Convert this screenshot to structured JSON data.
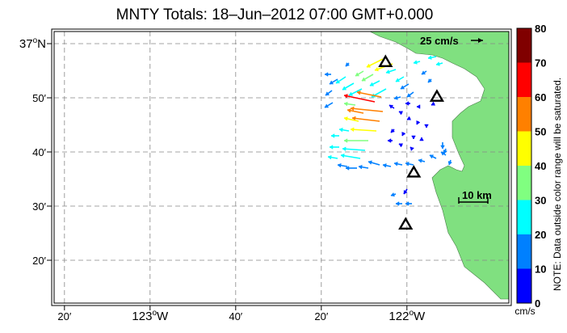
{
  "title": "MNTY Totals: 18–Jun–2012 07:00 GMT+0.000",
  "lat_labels": [
    {
      "text": "37",
      "deg": true,
      "suffix": "N",
      "lat": 37.0
    },
    {
      "text": "50′",
      "lat": 36.8333
    },
    {
      "text": "40′",
      "lat": 36.6667
    },
    {
      "text": "30′",
      "lat": 36.5
    },
    {
      "text": "20′",
      "lat": 36.3333
    }
  ],
  "lon_labels": [
    {
      "text": "20′",
      "lon": -123.3333
    },
    {
      "text": "123",
      "deg": true,
      "suffix": "W",
      "lon": -123.0
    },
    {
      "text": "40′",
      "lon": -122.6667
    },
    {
      "text": "20′",
      "lon": -122.3333
    },
    {
      "text": "122",
      "deg": true,
      "suffix": "W",
      "lon": -122.0
    }
  ],
  "degree_symbol": "o",
  "scale_arrow_label": "25 cm/s",
  "scale_bar_label": "10 km",
  "colorbar": {
    "ticks": [
      "0",
      "10",
      "20",
      "30",
      "40",
      "50",
      "60",
      "70",
      "80"
    ],
    "colors": [
      "#0000ff",
      "#0080ff",
      "#00ffff",
      "#80ff80",
      "#ffff00",
      "#ff8000",
      "#ff0000",
      "#800000"
    ],
    "unit": "cm/s",
    "note": "NOTE: Data outside color range will be saturated."
  },
  "land_color": "#80e080",
  "stations": [
    {
      "name": "station-1",
      "lon": -122.0833,
      "lat": 36.9433
    },
    {
      "name": "station-2",
      "lon": -121.8833,
      "lat": 36.8367
    },
    {
      "name": "station-3",
      "lon": -121.9733,
      "lat": 36.6033
    },
    {
      "name": "station-4",
      "lon": -122.005,
      "lat": 36.4433
    }
  ],
  "vector_samples": [
    {
      "speed_band": "10-20",
      "count": "many"
    },
    {
      "speed_band": "30-50",
      "count": "several"
    },
    {
      "speed_band": "60-70",
      "count": "one"
    }
  ]
}
